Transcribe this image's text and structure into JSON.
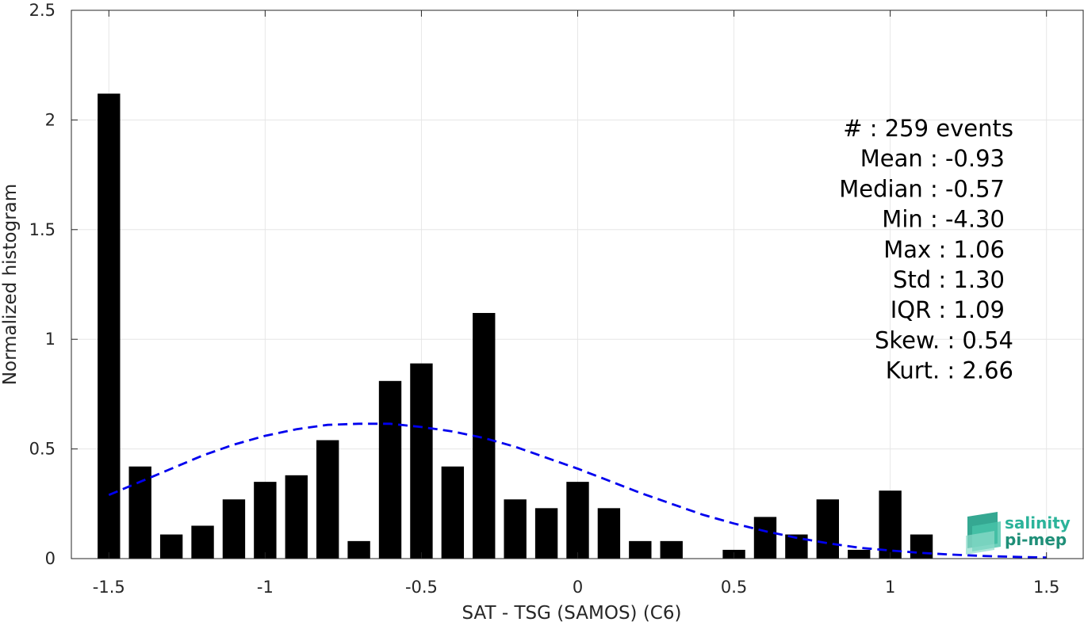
{
  "chart_data": {
    "type": "bar",
    "title": "",
    "xlabel": "SAT - TSG (SAMOS) (C6)",
    "ylabel": "Normalized histogram",
    "xlim": [
      -1.62,
      1.62
    ],
    "ylim": [
      0,
      2.5
    ],
    "xticks": [
      -1.5,
      -1,
      -0.5,
      0,
      0.5,
      1,
      1.5
    ],
    "xtick_labels": [
      "-1.5",
      "-1",
      "-0.5",
      "0",
      "0.5",
      "1",
      "1.5"
    ],
    "yticks": [
      0,
      0.5,
      1,
      1.5,
      2,
      2.5
    ],
    "ytick_labels": [
      "0",
      "0.5",
      "1",
      "1.5",
      "2",
      "2.5"
    ],
    "grid": true,
    "bin_width": 0.1,
    "bar_color": "#000000",
    "curve_color": "#0000ee",
    "categories": [
      -1.5,
      -1.4,
      -1.3,
      -1.2,
      -1.1,
      -1.0,
      -0.9,
      -0.8,
      -0.7,
      -0.6,
      -0.5,
      -0.4,
      -0.3,
      -0.2,
      -0.1,
      0.0,
      0.1,
      0.2,
      0.3,
      0.4,
      0.5,
      0.6,
      0.7,
      0.8,
      0.9,
      1.0,
      1.1
    ],
    "values": [
      2.12,
      0.42,
      0.11,
      0.15,
      0.27,
      0.35,
      0.38,
      0.54,
      0.08,
      0.81,
      0.89,
      0.42,
      1.12,
      0.27,
      0.23,
      0.35,
      0.23,
      0.08,
      0.08,
      0.0,
      0.04,
      0.19,
      0.11,
      0.27,
      0.04,
      0.31,
      0.11
    ],
    "fit_curve": {
      "style": "dashed",
      "x": [
        -1.5,
        -1.4,
        -1.3,
        -1.2,
        -1.1,
        -1.0,
        -0.9,
        -0.8,
        -0.7,
        -0.6,
        -0.5,
        -0.4,
        -0.3,
        -0.2,
        -0.1,
        0.0,
        0.1,
        0.2,
        0.3,
        0.4,
        0.5,
        0.6,
        0.7,
        0.8,
        0.9,
        1.0,
        1.1,
        1.2,
        1.3,
        1.4,
        1.5
      ],
      "y": [
        0.29,
        0.35,
        0.41,
        0.47,
        0.52,
        0.56,
        0.59,
        0.61,
        0.615,
        0.615,
        0.6,
        0.58,
        0.55,
        0.51,
        0.46,
        0.41,
        0.355,
        0.3,
        0.25,
        0.2,
        0.16,
        0.125,
        0.095,
        0.07,
        0.05,
        0.037,
        0.026,
        0.018,
        0.012,
        0.008,
        0.005
      ]
    },
    "stats": [
      "#  : 259 events",
      "Mean : -0.93",
      "Median : -0.57",
      "Min : -4.30",
      "Max : 1.06",
      "Std : 1.30",
      "IQR : 1.09",
      "Skew. : 0.54",
      "Kurt. : 2.66"
    ]
  },
  "logo": {
    "line1": "salinity",
    "line2": "pi-mep",
    "color": "#2bb39a"
  }
}
